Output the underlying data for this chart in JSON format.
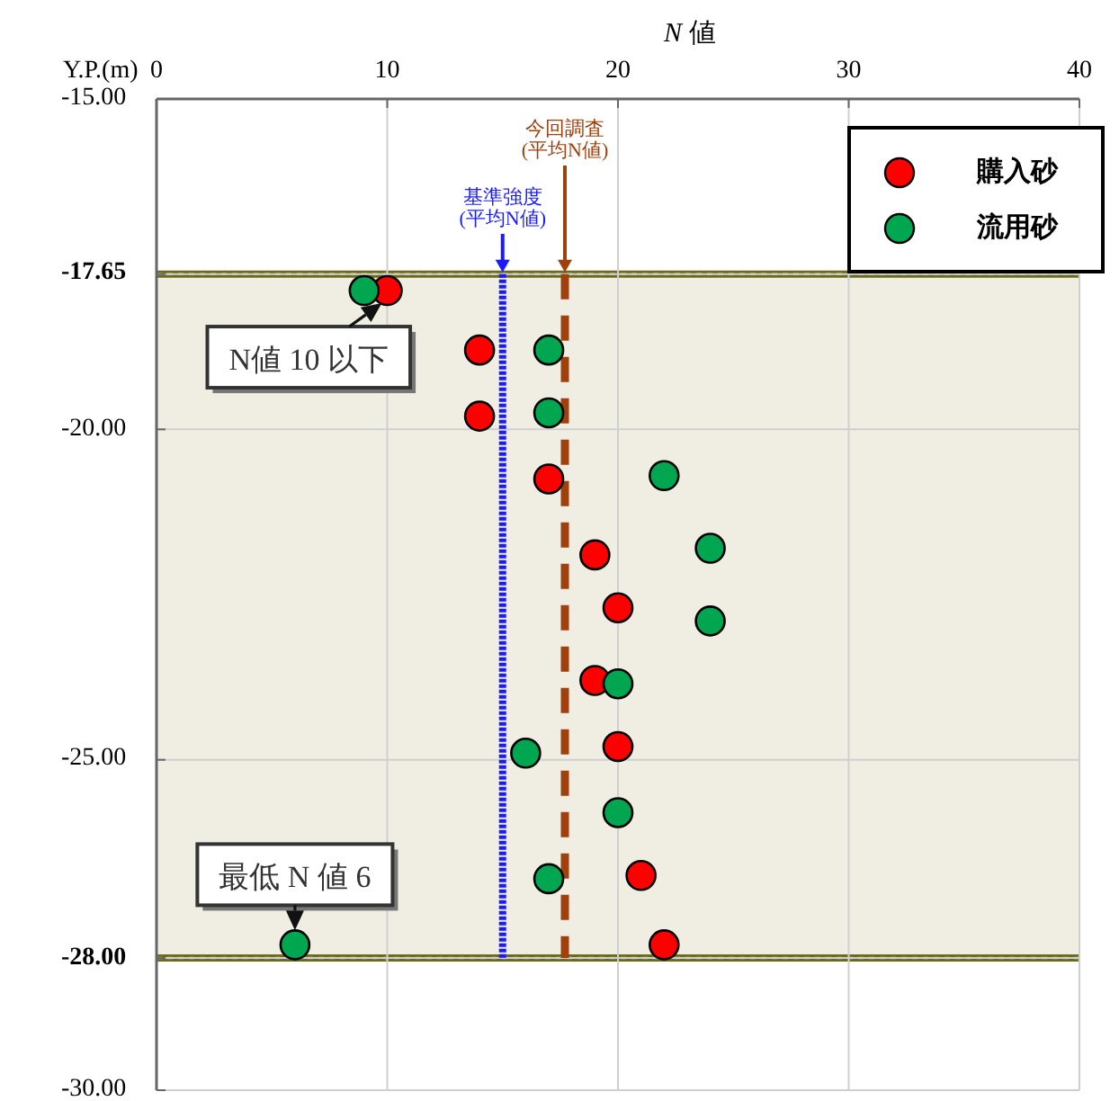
{
  "chart_data": {
    "type": "scatter",
    "xlabel": "*N* 値",
    "ylabel": "Y.P.(m)",
    "xlim": [
      0,
      40
    ],
    "xticks": [
      0,
      10,
      20,
      30,
      40
    ],
    "ylim": [
      -30,
      -15
    ],
    "yticks": [
      {
        "value": -15,
        "label": "-15.00"
      },
      {
        "value": -17.65,
        "label": "-17.65"
      },
      {
        "value": -20,
        "label": "-20.00"
      },
      {
        "value": -25,
        "label": "-25.00"
      },
      {
        "value": -28,
        "label": "-28.00"
      },
      {
        "value": -30,
        "label": "-30.00"
      }
    ],
    "grid": true,
    "legend": "top right",
    "marker": "circle",
    "series": [
      {
        "name": "購入砂",
        "color": "#ff0000",
        "x": [
          10,
          14,
          14,
          17,
          19,
          20,
          19,
          20,
          21,
          22
        ],
        "values": [
          -17.9,
          -18.8,
          -19.8,
          -20.75,
          -21.9,
          -22.7,
          -23.8,
          -24.8,
          -26.75,
          -27.8
        ]
      },
      {
        "name": "流用砂",
        "color": "#00a650",
        "x": [
          9,
          17,
          17,
          22,
          24,
          24,
          20,
          16,
          20,
          17,
          6
        ],
        "values": [
          -17.9,
          -18.8,
          -19.75,
          -20.7,
          -21.8,
          -22.9,
          -23.85,
          -24.9,
          -25.8,
          -26.8,
          -27.8
        ]
      }
    ],
    "ref_lines": [
      {
        "axis": "x",
        "value": 15,
        "label": "基準強度 (平均N値)",
        "color": "#1a1aff",
        "line_style": "dotted"
      },
      {
        "axis": "x",
        "value": 17.7,
        "label": "今回調査 (平均N値)",
        "color": "#a0410d",
        "line_style": "dashed"
      }
    ],
    "bands": [
      {
        "axis": "y",
        "from": -17.65,
        "to": -28,
        "color": "#f0eee2"
      }
    ],
    "annotations": [
      {
        "text": "N値 10 以下",
        "x": 10,
        "y": -17.9
      },
      {
        "text": "最低 N 値 6",
        "x": 6,
        "y": -27.8
      }
    ]
  }
}
